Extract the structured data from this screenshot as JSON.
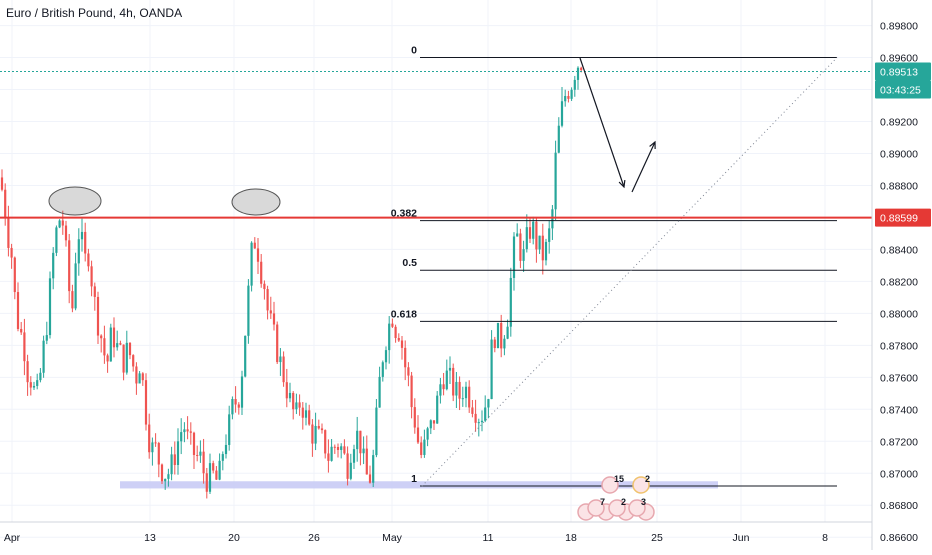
{
  "header": {
    "title": "Euro / British Pound, 4h, OANDA"
  },
  "colors": {
    "up": "#26a69a",
    "down": "#ef5350",
    "resistance_line": "#e53935",
    "current_price": "#26a69a",
    "support_zone": "#c5c8f5",
    "grid": "#f0f3fa",
    "axis_text": "#131722"
  },
  "chart_data": {
    "type": "candlestick",
    "timeframe": "4h",
    "y_axis": {
      "min": 0.8652,
      "max": 0.8996,
      "ticks": [
        "0.89800",
        "0.89600",
        "0.89400",
        "0.89200",
        "0.89000",
        "0.88800",
        "0.88600",
        "0.88400",
        "0.88200",
        "0.88000",
        "0.87800",
        "0.87600",
        "0.87400",
        "0.87200",
        "0.87000",
        "0.86800",
        "0.86600"
      ]
    },
    "x_axis": {
      "ticks": [
        "Apr",
        "13",
        "20",
        "26",
        "May",
        "11",
        "18",
        "25",
        "Jun",
        "8"
      ]
    },
    "candles_path": [
      [
        0,
        0.8885
      ],
      [
        4,
        0.887
      ],
      [
        8,
        0.885
      ],
      [
        12,
        0.8835
      ],
      [
        16,
        0.88
      ],
      [
        20,
        0.879
      ],
      [
        24,
        0.878
      ],
      [
        28,
        0.8762
      ],
      [
        32,
        0.8758
      ],
      [
        36,
        0.8745
      ],
      [
        40,
        0.876
      ],
      [
        44,
        0.878
      ],
      [
        48,
        0.88
      ],
      [
        52,
        0.883
      ],
      [
        56,
        0.885
      ],
      [
        60,
        0.886
      ],
      [
        64,
        0.8855
      ],
      [
        68,
        0.882
      ],
      [
        72,
        0.88
      ],
      [
        76,
        0.884
      ],
      [
        80,
        0.8855
      ],
      [
        84,
        0.883
      ],
      [
        88,
        0.884
      ],
      [
        92,
        0.882
      ],
      [
        96,
        0.88
      ],
      [
        100,
        0.879
      ],
      [
        104,
        0.8775
      ],
      [
        108,
        0.877
      ],
      [
        112,
        0.879
      ],
      [
        116,
        0.878
      ],
      [
        120,
        0.8775
      ],
      [
        124,
        0.877
      ],
      [
        128,
        0.8778
      ],
      [
        132,
        0.877
      ],
      [
        136,
        0.876
      ],
      [
        140,
        0.877
      ],
      [
        144,
        0.875
      ],
      [
        148,
        0.8725
      ],
      [
        152,
        0.8715
      ],
      [
        156,
        0.8715
      ],
      [
        160,
        0.8705
      ],
      [
        164,
        0.87
      ],
      [
        168,
        0.87
      ],
      [
        172,
        0.8705
      ],
      [
        176,
        0.8715
      ],
      [
        180,
        0.8725
      ],
      [
        184,
        0.873
      ],
      [
        188,
        0.872
      ],
      [
        192,
        0.8715
      ],
      [
        196,
        0.871
      ],
      [
        200,
        0.871
      ],
      [
        204,
        0.87
      ],
      [
        208,
        0.8695
      ],
      [
        212,
        0.87
      ],
      [
        216,
        0.8695
      ],
      [
        220,
        0.87
      ],
      [
        224,
        0.872
      ],
      [
        228,
        0.8725
      ],
      [
        232,
        0.874
      ],
      [
        236,
        0.8745
      ],
      [
        240,
        0.875
      ],
      [
        244,
        0.878
      ],
      [
        248,
        0.881
      ],
      [
        252,
        0.884
      ],
      [
        256,
        0.8848
      ],
      [
        260,
        0.883
      ],
      [
        264,
        0.882
      ],
      [
        268,
        0.88
      ],
      [
        272,
        0.879
      ],
      [
        276,
        0.878
      ],
      [
        280,
        0.877
      ],
      [
        284,
        0.876
      ],
      [
        288,
        0.875
      ],
      [
        292,
        0.874
      ],
      [
        296,
        0.8735
      ],
      [
        300,
        0.8745
      ],
      [
        304,
        0.874
      ],
      [
        308,
        0.873
      ],
      [
        312,
        0.8725
      ],
      [
        316,
        0.8725
      ],
      [
        320,
        0.872
      ],
      [
        324,
        0.872
      ],
      [
        328,
        0.871
      ],
      [
        332,
        0.8715
      ],
      [
        336,
        0.8718
      ],
      [
        340,
        0.8718
      ],
      [
        344,
        0.871
      ],
      [
        348,
        0.8705
      ],
      [
        352,
        0.872
      ],
      [
        356,
        0.8725
      ],
      [
        360,
        0.872
      ],
      [
        364,
        0.8705
      ],
      [
        368,
        0.8695
      ],
      [
        372,
        0.87
      ],
      [
        376,
        0.873
      ],
      [
        380,
        0.876
      ],
      [
        384,
        0.878
      ],
      [
        388,
        0.879
      ],
      [
        392,
        0.88
      ],
      [
        396,
        0.879
      ],
      [
        400,
        0.879
      ],
      [
        404,
        0.877
      ],
      [
        408,
        0.876
      ],
      [
        412,
        0.874
      ],
      [
        416,
        0.873
      ],
      [
        420,
        0.871
      ],
      [
        424,
        0.8715
      ],
      [
        428,
        0.8725
      ],
      [
        432,
        0.873
      ],
      [
        436,
        0.874
      ],
      [
        440,
        0.8755
      ],
      [
        444,
        0.8762
      ],
      [
        448,
        0.876
      ],
      [
        452,
        0.8755
      ],
      [
        456,
        0.875
      ],
      [
        460,
        0.8748
      ],
      [
        464,
        0.8755
      ],
      [
        468,
        0.875
      ],
      [
        472,
        0.8745
      ],
      [
        476,
        0.874
      ],
      [
        480,
        0.8735
      ],
      [
        484,
        0.874
      ],
      [
        488,
        0.875
      ],
      [
        492,
        0.878
      ],
      [
        496,
        0.879
      ],
      [
        500,
        0.878
      ],
      [
        504,
        0.879
      ],
      [
        508,
        0.88
      ],
      [
        512,
        0.883
      ],
      [
        516,
        0.885
      ],
      [
        520,
        0.884
      ],
      [
        524,
        0.8835
      ],
      [
        528,
        0.885
      ],
      [
        532,
        0.8855
      ],
      [
        536,
        0.8845
      ],
      [
        540,
        0.884
      ],
      [
        544,
        0.8835
      ],
      [
        548,
        0.8845
      ],
      [
        552,
        0.886
      ],
      [
        556,
        0.89
      ],
      [
        560,
        0.892
      ],
      [
        564,
        0.8935
      ],
      [
        568,
        0.894
      ],
      [
        572,
        0.8945
      ],
      [
        576,
        0.8955
      ],
      [
        580,
        0.8958
      ]
    ],
    "series": [
      {
        "kind": "fib_level",
        "label": "0",
        "y": 0.896
      },
      {
        "kind": "fib_level",
        "label": "0.382",
        "y": 0.8858
      },
      {
        "kind": "fib_level",
        "label": "0.5",
        "y": 0.8827
      },
      {
        "kind": "fib_level",
        "label": "0.618",
        "y": 0.8795
      },
      {
        "kind": "fib_level",
        "label": "1",
        "y": 0.8692
      }
    ],
    "annotations": {
      "resistance": {
        "price": "0.88599",
        "y": 0.88599
      },
      "current": {
        "price": "0.89513",
        "countdown": "03:43:25",
        "y": 0.89513
      },
      "support_zone": {
        "y_low": 0.86905,
        "y_high": 0.8695
      },
      "event_badges": [
        "15",
        "2",
        "7",
        "2",
        "3"
      ]
    }
  }
}
